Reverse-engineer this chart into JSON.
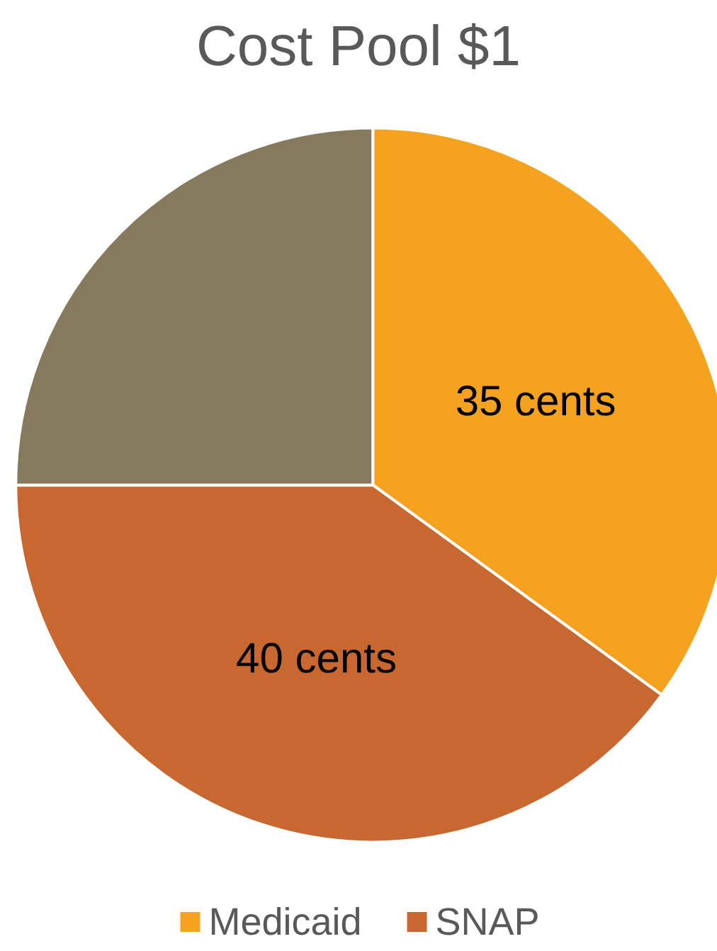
{
  "chart_data": {
    "type": "pie",
    "title": "Cost Pool $1",
    "categories": [
      "Medicaid",
      "SNAP",
      null
    ],
    "values": [
      35,
      40,
      25
    ],
    "colors": [
      "#f5a31f",
      "#c96730",
      "#857a5e"
    ],
    "value_labels": [
      "35 cents",
      "40 cents",
      null
    ],
    "legend": "bottom"
  }
}
